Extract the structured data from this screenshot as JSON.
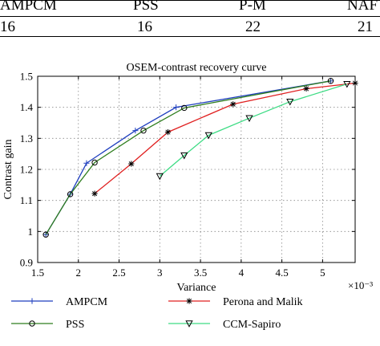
{
  "table": {
    "headers": [
      "AMPCM",
      "PSS",
      "P-M",
      "NAF"
    ],
    "values": [
      "16",
      "16",
      "22",
      "21"
    ]
  },
  "chart_data": {
    "type": "line",
    "title": "OSEM-contrast recovery curve",
    "xlabel": "Variance",
    "ylabel": "Contrast gain",
    "x_exponent_label": "×10⁻³",
    "xlim": [
      1.5,
      5.4
    ],
    "ylim": [
      0.9,
      1.5
    ],
    "xticks": [
      "1.5",
      "2",
      "2.5",
      "3",
      "3.5",
      "4",
      "4.5",
      "5"
    ],
    "yticks": [
      "0.9",
      "1",
      "1.1",
      "1.2",
      "1.3",
      "1.4",
      "1.5"
    ],
    "grid": true,
    "legend_position": "bottom",
    "series": [
      {
        "name": "AMPCM",
        "color": "#1f3fbf",
        "marker": "plus",
        "x": [
          1.6,
          1.9,
          2.1,
          2.7,
          3.2,
          5.1
        ],
        "y": [
          0.99,
          1.12,
          1.22,
          1.325,
          1.4,
          1.485
        ]
      },
      {
        "name": "PSS",
        "color": "#2e7d1e",
        "marker": "circle",
        "x": [
          1.6,
          1.9,
          2.2,
          2.8,
          3.3,
          5.1
        ],
        "y": [
          0.99,
          1.12,
          1.222,
          1.325,
          1.398,
          1.485
        ]
      },
      {
        "name": "Perona and Malik",
        "color": "#e02020",
        "marker": "star",
        "x": [
          2.2,
          2.65,
          3.1,
          3.9,
          4.8,
          5.4
        ],
        "y": [
          1.122,
          1.218,
          1.32,
          1.41,
          1.46,
          1.478
        ]
      },
      {
        "name": "CCM-Sapiro",
        "color": "#3ddc84",
        "marker": "triangle-down",
        "x": [
          3.0,
          3.3,
          3.6,
          4.1,
          4.6,
          5.3
        ],
        "y": [
          1.178,
          1.245,
          1.31,
          1.365,
          1.418,
          1.475
        ]
      }
    ]
  }
}
